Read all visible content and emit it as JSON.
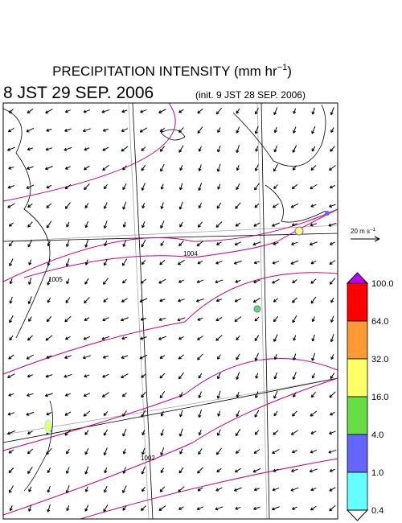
{
  "header": {
    "title": [
      "PRECIPITATION INTENSITY (mm hr",
      "−1",
      ")"
    ],
    "valid_time": "8 JST 29 SEP. 2006",
    "init_time": "(init. 9 JST 28 SEP. 2006)"
  },
  "wind_legend": [
    "20 m s",
    "−1"
  ],
  "isobar_labels": [
    "1005",
    "1004",
    "1002"
  ],
  "colorbar": {
    "labels": [
      "100.0",
      "64.0",
      "32.0",
      "16.0",
      "4.0",
      "1.0",
      "0.4"
    ],
    "colors": [
      "#c000ff",
      "#ff0000",
      "#ff9933",
      "#ffff66",
      "#66dd44",
      "#6666ff",
      "#66ffff",
      "#ffffff"
    ]
  }
}
